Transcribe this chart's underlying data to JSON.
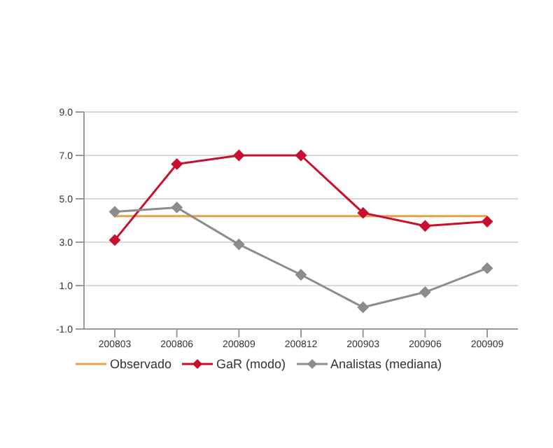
{
  "chart_data": {
    "type": "line",
    "categories": [
      "200803",
      "200806",
      "200809",
      "200812",
      "200903",
      "200906",
      "200909"
    ],
    "series": [
      {
        "name": "Observado",
        "color": "#e8a14a",
        "values": [
          4.2,
          4.2,
          4.2,
          4.2,
          4.2,
          4.2,
          4.2
        ],
        "marker": "none"
      },
      {
        "name": "GaR (modo)",
        "color": "#c8102e",
        "values": [
          3.1,
          6.6,
          7.0,
          7.0,
          4.35,
          3.75,
          3.95
        ],
        "marker": "diamond"
      },
      {
        "name": "Analistas (mediana)",
        "color": "#8c8c8c",
        "values": [
          4.4,
          4.6,
          2.9,
          1.5,
          0.0,
          0.7,
          1.8
        ],
        "marker": "diamond"
      }
    ],
    "ylim": [
      -1,
      9
    ],
    "yticks": [
      {
        "value": -1,
        "label": "-1.0"
      },
      {
        "value": 1,
        "label": "1.0"
      },
      {
        "value": 3,
        "label": "3.0"
      },
      {
        "value": 5,
        "label": "5.0"
      },
      {
        "value": 7,
        "label": "7.0"
      },
      {
        "value": 9,
        "label": "9.0"
      }
    ],
    "grid": "y",
    "legend": "bottom"
  }
}
